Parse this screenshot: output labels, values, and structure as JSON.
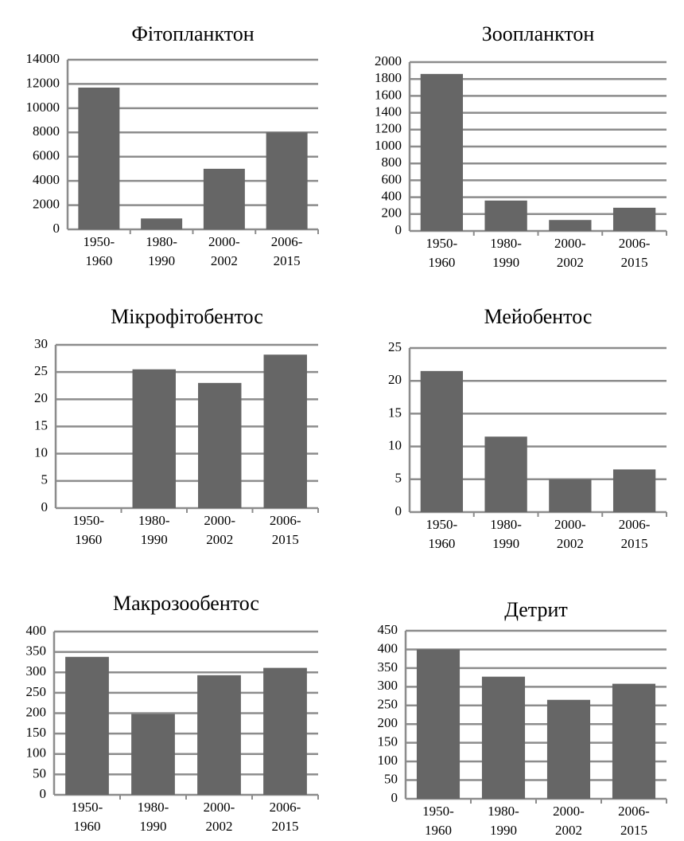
{
  "chart_data": [
    {
      "type": "bar",
      "title": "Фітопланктон",
      "categories": [
        "1950-1960",
        "1980-1990",
        "2000-2002",
        "2006-2015"
      ],
      "values": [
        11700,
        900,
        5000,
        8000
      ],
      "color": "#666666",
      "ylim": [
        0,
        14000
      ],
      "yticks": [
        0,
        2000,
        4000,
        6000,
        8000,
        10000,
        12000,
        14000
      ],
      "grid": true
    },
    {
      "type": "bar",
      "title": "Зоопланктон",
      "categories": [
        "1950-1960",
        "1980-1990",
        "2000-2002",
        "2006-2015"
      ],
      "values": [
        1860,
        360,
        130,
        275
      ],
      "color": "#666666",
      "ylim": [
        0,
        2000
      ],
      "yticks": [
        0,
        200,
        400,
        600,
        800,
        1000,
        1200,
        1400,
        1600,
        1800,
        2000
      ],
      "grid": true
    },
    {
      "type": "bar",
      "title": "Мікрофітобентос",
      "categories": [
        "1950-1960",
        "1980-1990",
        "2000-2002",
        "2006-2015"
      ],
      "values": [
        null,
        25.5,
        23,
        28.2
      ],
      "color": "#666666",
      "ylim": [
        0,
        30
      ],
      "yticks": [
        0,
        5,
        10,
        15,
        20,
        25,
        30
      ],
      "grid": true
    },
    {
      "type": "bar",
      "title": "Мейобентос",
      "categories": [
        "1950-1960",
        "1980-1990",
        "2000-2002",
        "2006-2015"
      ],
      "values": [
        21.5,
        11.5,
        5,
        6.5
      ],
      "color": "#666666",
      "ylim": [
        0,
        25
      ],
      "yticks": [
        0,
        5,
        10,
        15,
        20,
        25
      ],
      "grid": true
    },
    {
      "type": "bar",
      "title": "Макрозообентос",
      "categories": [
        "1950-1960",
        "1980-1990",
        "2000-2002",
        "2006-2015"
      ],
      "values": [
        338,
        198,
        293,
        311
      ],
      "color": "#666666",
      "ylim": [
        0,
        400
      ],
      "yticks": [
        0,
        50,
        100,
        150,
        200,
        250,
        300,
        350,
        400
      ],
      "grid": true
    },
    {
      "type": "bar",
      "title": "Детрит",
      "categories": [
        "1950-1960",
        "1980-1990",
        "2000-2002",
        "2006-2015"
      ],
      "values": [
        400,
        327,
        265,
        308
      ],
      "color": "#666666",
      "ylim": [
        0,
        450
      ],
      "yticks": [
        0,
        50,
        100,
        150,
        200,
        250,
        300,
        350,
        400,
        450
      ],
      "grid": true
    }
  ]
}
